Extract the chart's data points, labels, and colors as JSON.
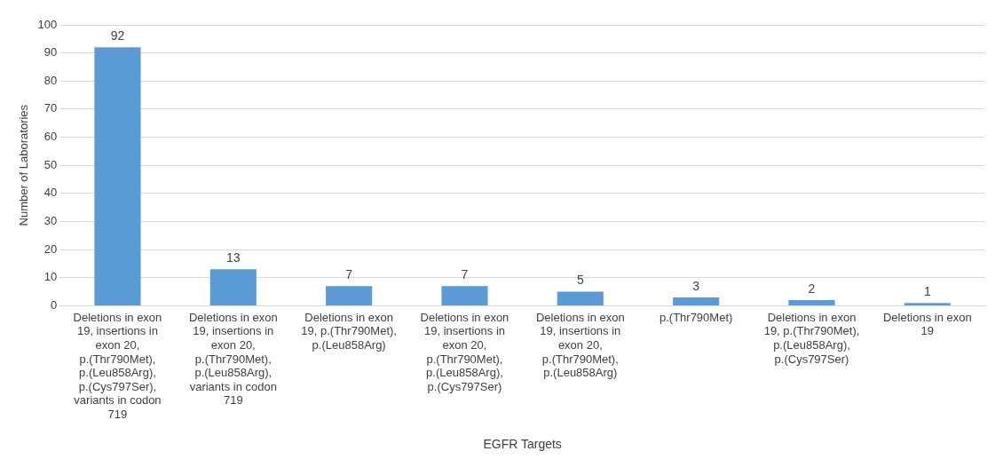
{
  "chart_data": {
    "type": "bar",
    "xlabel": "EGFR Targets",
    "ylabel": "Number of Laboratories",
    "categories": [
      "Deletions in exon 19, insertions in exon 20, p.(Thr790Met), p.(Leu858Arg), p.(Cys797Ser), variants in codon 719",
      "Deletions in exon 19, insertions in exon 20, p.(Thr790Met), p.(Leu858Arg), variants in codon 719",
      "Deletions in exon 19, p.(Thr790Met), p.(Leu858Arg)",
      "Deletions in exon 19, insertions in exon 20, p.(Thr790Met), p.(Leu858Arg), p.(Cys797Ser)",
      "Deletions in exon 19, insertions in exon 20, p.(Thr790Met), p.(Leu858Arg)",
      "p.(Thr790Met)",
      "Deletions in exon 19, p.(Thr790Met), p.(Leu858Arg), p.(Cys797Ser)",
      "Deletions in exon 19"
    ],
    "values": [
      92,
      13,
      7,
      7,
      5,
      3,
      2,
      1
    ],
    "color": "#5b9bd5",
    "ylim": [
      0,
      100
    ],
    "yticks": [
      0,
      10,
      20,
      30,
      40,
      50,
      60,
      70,
      80,
      90,
      100
    ],
    "grid": "y",
    "legend": false,
    "data_labels": true
  }
}
